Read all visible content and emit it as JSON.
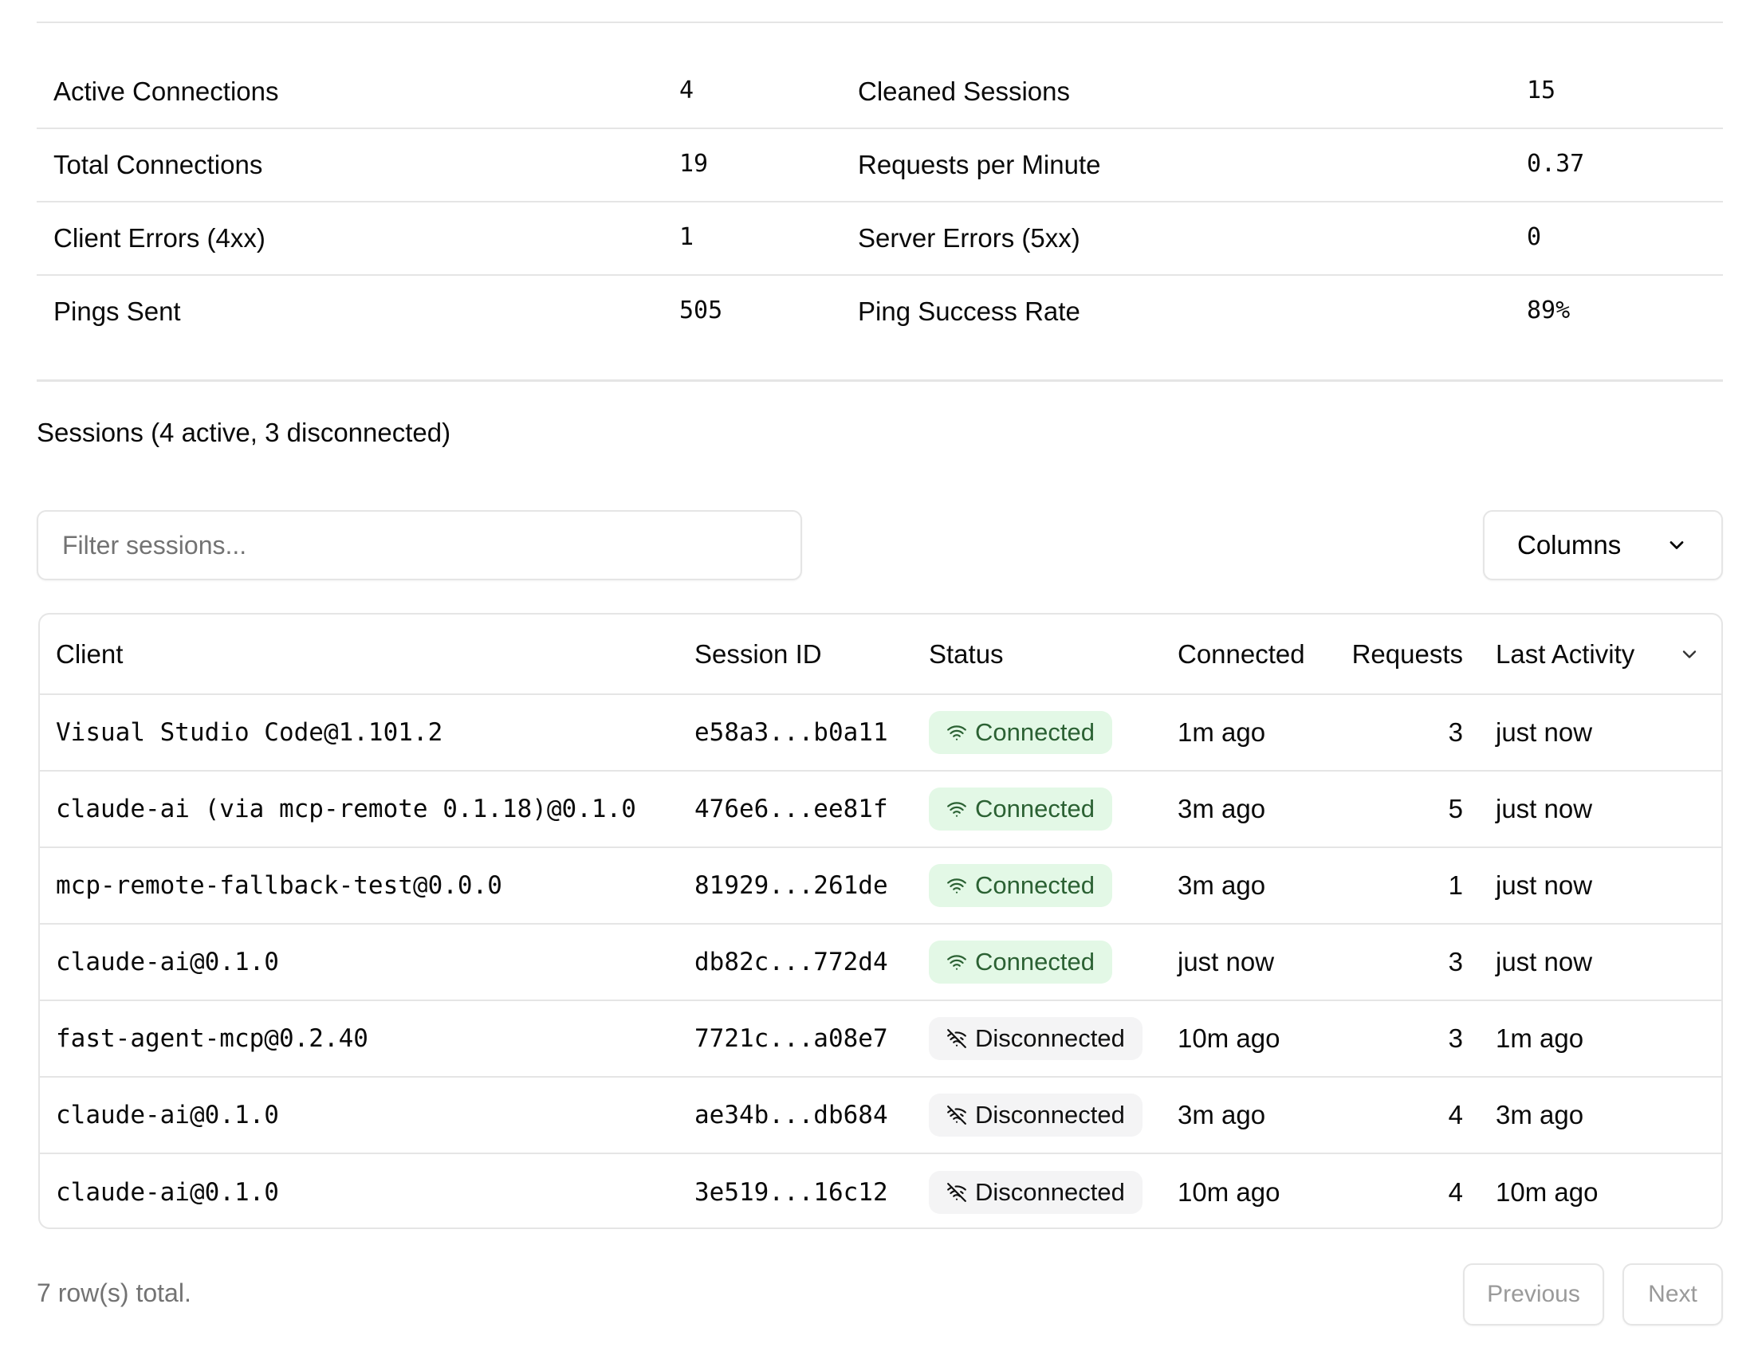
{
  "stats": [
    {
      "label": "Active Connections",
      "value": "4",
      "label2": "Cleaned Sessions",
      "value2": "15"
    },
    {
      "label": "Total Connections",
      "value": "19",
      "label2": "Requests per Minute",
      "value2": "0.37"
    },
    {
      "label": "Client Errors (4xx)",
      "value": "1",
      "label2": "Server Errors (5xx)",
      "value2": "0"
    },
    {
      "label": "Pings Sent",
      "value": "505",
      "label2": "Ping Success Rate",
      "value2": "89%"
    }
  ],
  "sessions_heading": "Sessions (4 active, 3 disconnected)",
  "filter": {
    "placeholder": "Filter sessions...",
    "value": ""
  },
  "columns_button": "Columns",
  "table": {
    "headers": [
      "Client",
      "Session ID",
      "Status",
      "Connected",
      "Requests",
      "Last Activity"
    ],
    "rows": [
      {
        "client": "Visual Studio Code@1.101.2",
        "session_id": "e58a3...b0a11",
        "status": "Connected",
        "connected": "1m ago",
        "requests": "3",
        "last_activity": "just now"
      },
      {
        "client": "claude-ai (via mcp-remote 0.1.18)@0.1.0",
        "session_id": "476e6...ee81f",
        "status": "Connected",
        "connected": "3m ago",
        "requests": "5",
        "last_activity": "just now"
      },
      {
        "client": "mcp-remote-fallback-test@0.0.0",
        "session_id": "81929...261de",
        "status": "Connected",
        "connected": "3m ago",
        "requests": "1",
        "last_activity": "just now"
      },
      {
        "client": "claude-ai@0.1.0",
        "session_id": "db82c...772d4",
        "status": "Connected",
        "connected": "just now",
        "requests": "3",
        "last_activity": "just now"
      },
      {
        "client": "fast-agent-mcp@0.2.40",
        "session_id": "7721c...a08e7",
        "status": "Disconnected",
        "connected": "10m ago",
        "requests": "3",
        "last_activity": "1m ago"
      },
      {
        "client": "claude-ai@0.1.0",
        "session_id": "ae34b...db684",
        "status": "Disconnected",
        "connected": "3m ago",
        "requests": "4",
        "last_activity": "3m ago"
      },
      {
        "client": "claude-ai@0.1.0",
        "session_id": "3e519...16c12",
        "status": "Disconnected",
        "connected": "10m ago",
        "requests": "4",
        "last_activity": "10m ago"
      }
    ]
  },
  "footer": {
    "total": "7 row(s) total.",
    "previous": "Previous",
    "next": "Next"
  },
  "colors": {
    "connected_bg": "#e3f8e6",
    "connected_text": "#2b6133",
    "disconnected_bg": "#f4f4f5"
  },
  "icons": {
    "connected": "wifi-icon",
    "disconnected": "wifi-off-icon",
    "columns": "chevron-down-icon"
  }
}
